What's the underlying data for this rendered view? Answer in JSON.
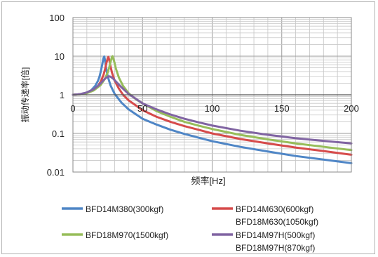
{
  "chart_data": {
    "type": "line",
    "title": "",
    "xlabel": "频率[Hz]",
    "ylabel": "振动传递率[倍]",
    "x_scale": "linear",
    "y_scale": "log",
    "xlim": [
      0,
      200
    ],
    "ylim": [
      0.01,
      100
    ],
    "x_ticks": [
      "0",
      "50",
      "100",
      "150",
      "200"
    ],
    "y_ticks": [
      "0.01",
      "0.1",
      "1",
      "10",
      "100"
    ],
    "grid": true,
    "legend_position": "bottom",
    "series": [
      {
        "name": "BFD14M380(300kgf)",
        "color": "#4f86c6",
        "points": [
          [
            0,
            1.0
          ],
          [
            5,
            1.03
          ],
          [
            10,
            1.15
          ],
          [
            13,
            1.3
          ],
          [
            16,
            1.7
          ],
          [
            18,
            2.3
          ],
          [
            19,
            2.9
          ],
          [
            20,
            4.0
          ],
          [
            21,
            6.0
          ],
          [
            22,
            9.0
          ],
          [
            22.5,
            9.8
          ],
          [
            23,
            8.0
          ],
          [
            24,
            4.5
          ],
          [
            25,
            3.0
          ],
          [
            27,
            1.75
          ],
          [
            30,
            1.05
          ],
          [
            35,
            0.62
          ],
          [
            40,
            0.42
          ],
          [
            50,
            0.24
          ],
          [
            60,
            0.17
          ],
          [
            70,
            0.125
          ],
          [
            80,
            0.097
          ],
          [
            90,
            0.078
          ],
          [
            100,
            0.063
          ],
          [
            120,
            0.045
          ],
          [
            140,
            0.034
          ],
          [
            160,
            0.026
          ],
          [
            180,
            0.021
          ],
          [
            200,
            0.017
          ]
        ]
      },
      {
        "name": "BFD14M630(600kgf)",
        "name_line2": "BFD18M630(1050kgf)",
        "color": "#d64b4b",
        "points": [
          [
            0,
            1.0
          ],
          [
            5,
            1.03
          ],
          [
            10,
            1.12
          ],
          [
            15,
            1.35
          ],
          [
            18,
            1.7
          ],
          [
            20,
            2.2
          ],
          [
            22,
            3.3
          ],
          [
            23,
            4.5
          ],
          [
            24,
            6.5
          ],
          [
            25,
            9.0
          ],
          [
            25.5,
            9.6
          ],
          [
            26,
            8.2
          ],
          [
            27,
            5.5
          ],
          [
            28,
            3.8
          ],
          [
            30,
            2.3
          ],
          [
            33,
            1.45
          ],
          [
            36,
            1.0
          ],
          [
            40,
            0.72
          ],
          [
            50,
            0.4
          ],
          [
            60,
            0.27
          ],
          [
            70,
            0.2
          ],
          [
            80,
            0.155
          ],
          [
            90,
            0.125
          ],
          [
            100,
            0.1
          ],
          [
            120,
            0.072
          ],
          [
            140,
            0.055
          ],
          [
            160,
            0.043
          ],
          [
            180,
            0.035
          ],
          [
            200,
            0.028
          ]
        ]
      },
      {
        "name": "BFD18M970(1500kgf)",
        "color": "#97bd5a",
        "points": [
          [
            0,
            1.0
          ],
          [
            5,
            1.03
          ],
          [
            10,
            1.1
          ],
          [
            15,
            1.3
          ],
          [
            20,
            1.8
          ],
          [
            23,
            2.6
          ],
          [
            25,
            3.8
          ],
          [
            26,
            5.0
          ],
          [
            27,
            7.0
          ],
          [
            28,
            9.5
          ],
          [
            28.5,
            10.0
          ],
          [
            29,
            8.8
          ],
          [
            30,
            6.5
          ],
          [
            31,
            4.6
          ],
          [
            33,
            2.8
          ],
          [
            36,
            1.7
          ],
          [
            40,
            1.1
          ],
          [
            45,
            0.78
          ],
          [
            50,
            0.6
          ],
          [
            60,
            0.38
          ],
          [
            70,
            0.27
          ],
          [
            80,
            0.2
          ],
          [
            90,
            0.16
          ],
          [
            100,
            0.13
          ],
          [
            120,
            0.092
          ],
          [
            140,
            0.07
          ],
          [
            160,
            0.055
          ],
          [
            180,
            0.045
          ],
          [
            200,
            0.037
          ]
        ]
      },
      {
        "name": "BFD14M97H(500kgf)",
        "name_line2": "BFD18M97H(870kgf)",
        "color": "#8064a2",
        "points": [
          [
            0,
            1.0
          ],
          [
            5,
            1.04
          ],
          [
            10,
            1.15
          ],
          [
            15,
            1.4
          ],
          [
            18,
            1.7
          ],
          [
            20,
            2.0
          ],
          [
            22,
            2.4
          ],
          [
            24,
            2.8
          ],
          [
            26,
            3.0
          ],
          [
            27,
            2.95
          ],
          [
            29,
            2.6
          ],
          [
            32,
            2.0
          ],
          [
            35,
            1.55
          ],
          [
            40,
            1.05
          ],
          [
            45,
            0.8
          ],
          [
            50,
            0.6
          ],
          [
            60,
            0.42
          ],
          [
            70,
            0.31
          ],
          [
            80,
            0.24
          ],
          [
            90,
            0.195
          ],
          [
            100,
            0.16
          ],
          [
            120,
            0.118
          ],
          [
            140,
            0.092
          ],
          [
            160,
            0.075
          ],
          [
            180,
            0.064
          ],
          [
            200,
            0.055
          ]
        ]
      }
    ]
  }
}
